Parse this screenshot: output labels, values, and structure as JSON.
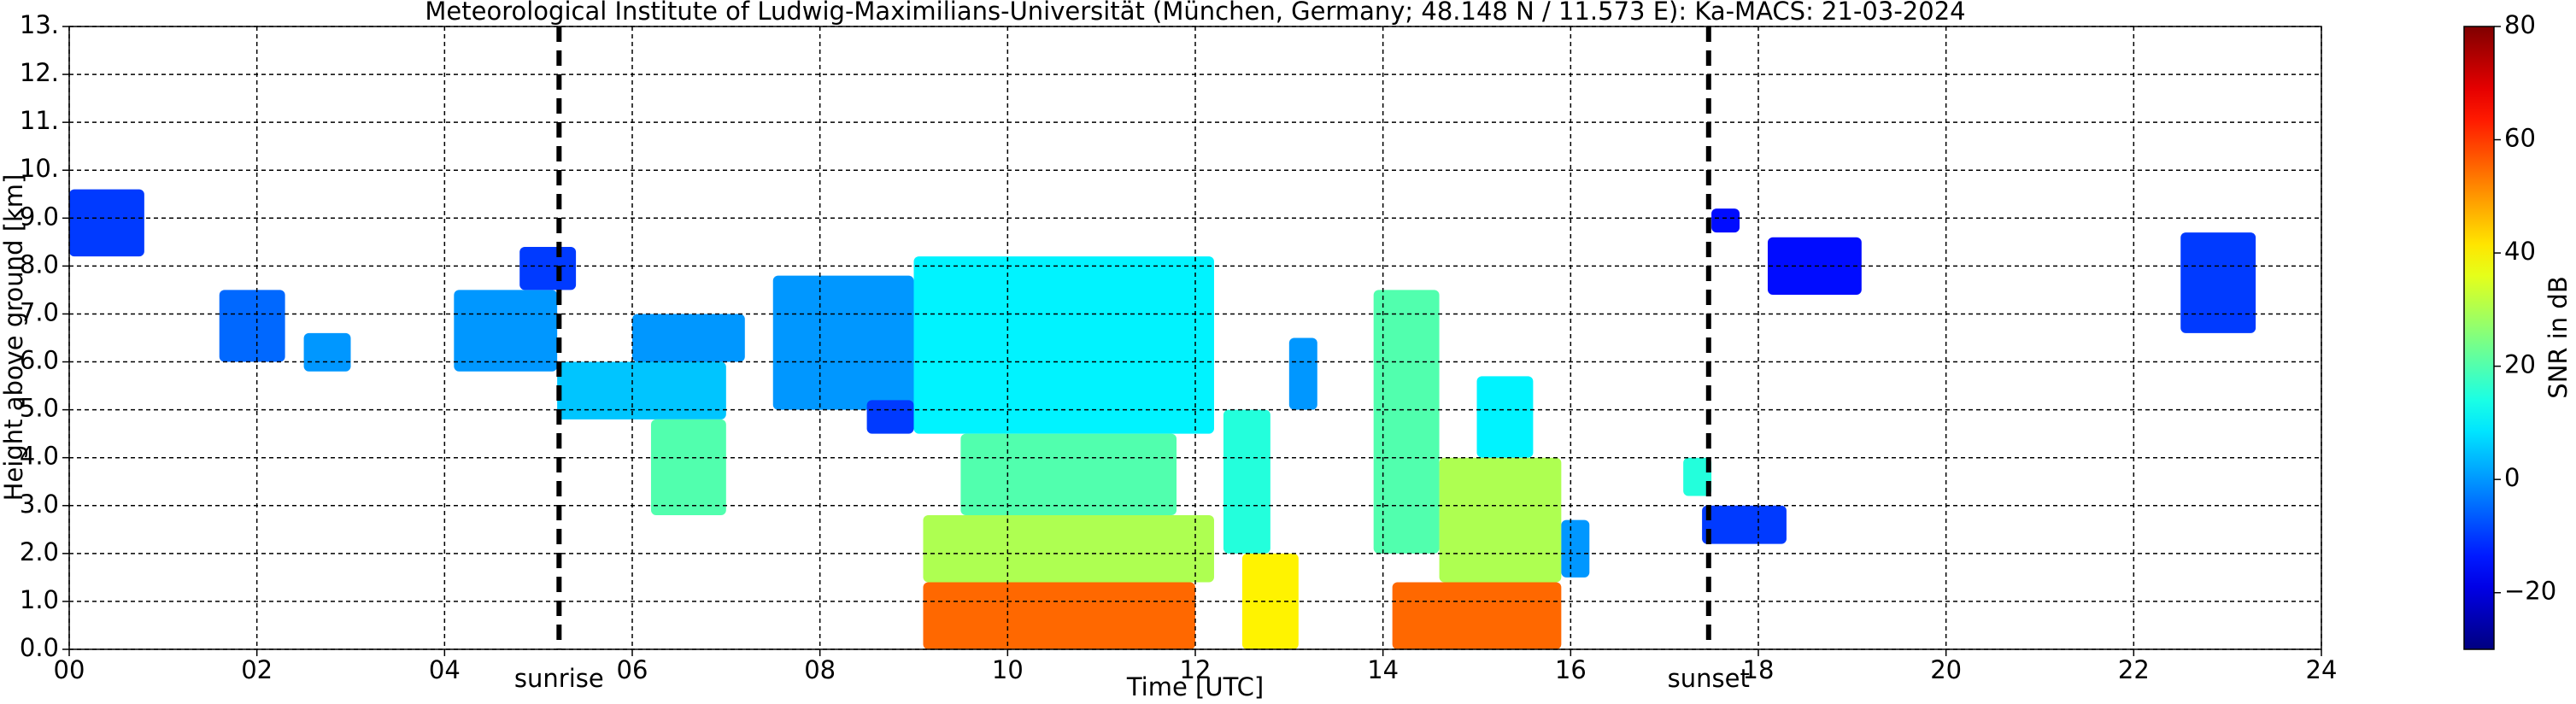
{
  "chart_data": {
    "type": "heatmap",
    "title": "Meteorological Institute of Ludwig-Maximilians-Universität (München, Germany; 48.148 N / 11.573 E):    Ka-MACS: 21-03-2024",
    "xlabel": "Time [UTC]",
    "ylabel": "Height above ground [km]",
    "colorbar_label": "SNR in dB",
    "colormap": "jet",
    "grid": true,
    "xlim": [
      0,
      24
    ],
    "xticks": [
      {
        "value": 0,
        "label": "00"
      },
      {
        "value": 2,
        "label": "02"
      },
      {
        "value": 4,
        "label": "04"
      },
      {
        "value": 6,
        "label": "06"
      },
      {
        "value": 8,
        "label": "08"
      },
      {
        "value": 10,
        "label": "10"
      },
      {
        "value": 12,
        "label": "12"
      },
      {
        "value": 14,
        "label": "14"
      },
      {
        "value": 16,
        "label": "16"
      },
      {
        "value": 18,
        "label": "18"
      },
      {
        "value": 20,
        "label": "20"
      },
      {
        "value": 22,
        "label": "22"
      },
      {
        "value": 24,
        "label": "24"
      }
    ],
    "ylim": [
      0,
      13
    ],
    "yticks": [
      {
        "value": 0,
        "label": "0.0"
      },
      {
        "value": 1,
        "label": "1.0"
      },
      {
        "value": 2,
        "label": "2.0"
      },
      {
        "value": 3,
        "label": "3.0"
      },
      {
        "value": 4,
        "label": "4.0"
      },
      {
        "value": 5,
        "label": "5.0"
      },
      {
        "value": 6,
        "label": "6.0"
      },
      {
        "value": 7,
        "label": "7.0"
      },
      {
        "value": 8,
        "label": "8.0"
      },
      {
        "value": 9,
        "label": "9.0"
      },
      {
        "value": 10,
        "label": "10."
      },
      {
        "value": 11,
        "label": "11."
      },
      {
        "value": 12,
        "label": "12."
      },
      {
        "value": 13,
        "label": "13."
      }
    ],
    "clim": [
      -30,
      80
    ],
    "cticks": [
      {
        "value": -20,
        "label": "−20"
      },
      0,
      20,
      40,
      60,
      80
    ],
    "annotations": [
      {
        "label": "sunrise",
        "x": 5.22
      },
      {
        "label": "sunset",
        "x": 17.47
      }
    ],
    "cells": [
      {
        "t": [
          0.0,
          0.8
        ],
        "h": [
          8.2,
          9.6
        ],
        "snr": -10
      },
      {
        "t": [
          1.6,
          2.3
        ],
        "h": [
          6.0,
          7.5
        ],
        "snr": -5
      },
      {
        "t": [
          2.5,
          3.0
        ],
        "h": [
          5.8,
          6.6
        ],
        "snr": 0
      },
      {
        "t": [
          4.1,
          5.2
        ],
        "h": [
          5.8,
          7.5
        ],
        "snr": 0
      },
      {
        "t": [
          4.8,
          5.4
        ],
        "h": [
          7.5,
          8.4
        ],
        "snr": -10
      },
      {
        "t": [
          5.2,
          7.0
        ],
        "h": [
          4.8,
          6.0
        ],
        "snr": 5
      },
      {
        "t": [
          6.0,
          7.2
        ],
        "h": [
          6.0,
          7.0
        ],
        "snr": 0
      },
      {
        "t": [
          6.2,
          7.0
        ],
        "h": [
          2.8,
          4.8
        ],
        "snr": 20
      },
      {
        "t": [
          7.5,
          9.0
        ],
        "h": [
          5.0,
          7.8
        ],
        "snr": 0
      },
      {
        "t": [
          8.5,
          9.0
        ],
        "h": [
          4.5,
          5.2
        ],
        "snr": -10
      },
      {
        "t": [
          9.0,
          12.2
        ],
        "h": [
          4.5,
          8.2
        ],
        "snr": 10
      },
      {
        "t": [
          9.5,
          11.8
        ],
        "h": [
          2.8,
          4.5
        ],
        "snr": 20
      },
      {
        "t": [
          9.1,
          12.2
        ],
        "h": [
          1.4,
          2.8
        ],
        "snr": 30
      },
      {
        "t": [
          9.1,
          12.0
        ],
        "h": [
          0.0,
          1.4
        ],
        "snr": 55
      },
      {
        "t": [
          12.3,
          12.8
        ],
        "h": [
          2.0,
          5.0
        ],
        "snr": 15
      },
      {
        "t": [
          12.5,
          13.1
        ],
        "h": [
          0.0,
          2.0
        ],
        "snr": 40
      },
      {
        "t": [
          13.0,
          13.3
        ],
        "h": [
          5.0,
          6.5
        ],
        "snr": 0
      },
      {
        "t": [
          13.9,
          14.6
        ],
        "h": [
          2.0,
          7.5
        ],
        "snr": 20
      },
      {
        "t": [
          14.1,
          15.9
        ],
        "h": [
          0.0,
          1.4
        ],
        "snr": 55
      },
      {
        "t": [
          14.6,
          15.9
        ],
        "h": [
          1.4,
          4.0
        ],
        "snr": 30
      },
      {
        "t": [
          15.0,
          15.6
        ],
        "h": [
          4.0,
          5.7
        ],
        "snr": 10
      },
      {
        "t": [
          15.9,
          16.2
        ],
        "h": [
          1.5,
          2.7
        ],
        "snr": 0
      },
      {
        "t": [
          17.2,
          17.5
        ],
        "h": [
          3.2,
          4.0
        ],
        "snr": 15
      },
      {
        "t": [
          17.4,
          18.3
        ],
        "h": [
          2.2,
          3.0
        ],
        "snr": -10
      },
      {
        "t": [
          17.5,
          17.8
        ],
        "h": [
          8.7,
          9.2
        ],
        "snr": -15
      },
      {
        "t": [
          18.1,
          19.1
        ],
        "h": [
          7.4,
          8.6
        ],
        "snr": -15
      },
      {
        "t": [
          22.5,
          23.3
        ],
        "h": [
          6.6,
          8.7
        ],
        "snr": -10
      }
    ]
  }
}
